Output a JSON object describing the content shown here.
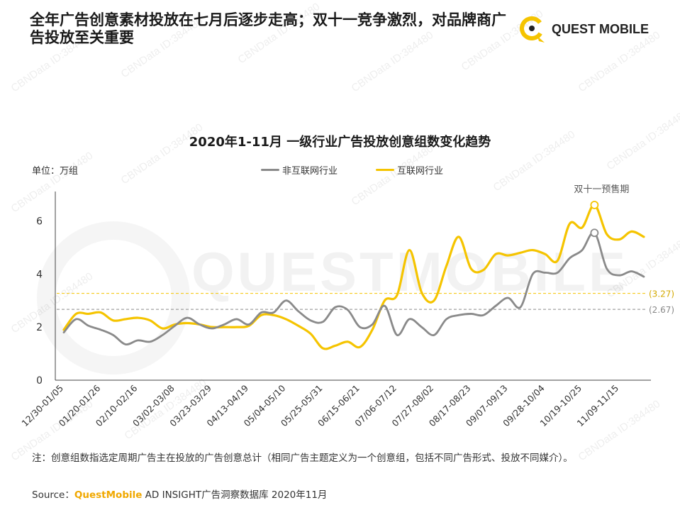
{
  "header": {
    "headline": "全年广告创意素材投放在七月后逐步走高；双十一竞争激烈，对品牌商广告投放至关重要",
    "logo_text": "QUEST MOBILE"
  },
  "watermark": {
    "text": "CBNData ID:384480",
    "bg_text": "QUESTMOBILE"
  },
  "unit_label": "单位：万组",
  "legend": {
    "series1": "非互联网行业",
    "series2": "互联网行业"
  },
  "annotations": {
    "peak_label": "双十一预售期",
    "avg1_label": "(2.67)",
    "avg2_label": "(3.27)"
  },
  "note": "注：创意组数指选定周期广告主在投放的广告创意总计（相同广告主题定义为一个创意组，包括不同广告形式、投放不同媒介）。",
  "source": {
    "prefix": "Source：",
    "brand": "QuestMobile",
    "suffix": " AD INSIGHT广告洞察数据库 2020年11月"
  },
  "colors": {
    "series1": "#8a8a8a",
    "series2": "#f5c400",
    "accent": "#f5c400"
  },
  "chart_data": {
    "type": "line",
    "title": "2020年1-11月 一级行业广告投放创意组数变化趋势",
    "ylabel": "单位：万组",
    "ylim": [
      0,
      7
    ],
    "yticks": [
      0,
      2,
      4,
      6
    ],
    "x_tick_labels": [
      "12/30-01/05",
      "01/20-01/26",
      "02/10-02/16",
      "03/02-03/08",
      "03/23-03/29",
      "04/13-04/19",
      "05/04-05/10",
      "05/25-05/31",
      "06/15-06/21",
      "07/06-07/12",
      "07/27-08/02",
      "08/17-08/23",
      "09/07-09/13",
      "09/28-10/04",
      "10/19-10/25",
      "11/09-11/15"
    ],
    "x_tick_positions": [
      0,
      3,
      6,
      9,
      12,
      15,
      18,
      21,
      24,
      27,
      30,
      33,
      36,
      39,
      42,
      45
    ],
    "series": [
      {
        "name": "非互联网行业",
        "values": [
          1.8,
          2.3,
          2.05,
          1.9,
          1.7,
          1.35,
          1.5,
          1.45,
          1.7,
          2.05,
          2.35,
          2.1,
          1.95,
          2.1,
          2.3,
          2.1,
          2.55,
          2.55,
          3.0,
          2.6,
          2.25,
          2.2,
          2.75,
          2.65,
          2.0,
          2.1,
          2.8,
          1.7,
          2.3,
          2.0,
          1.7,
          2.3,
          2.45,
          2.5,
          2.45,
          2.8,
          3.1,
          2.75,
          4.0,
          4.05,
          4.05,
          4.6,
          4.9,
          5.55,
          4.2,
          3.95,
          4.1,
          3.9
        ],
        "range": "1.3-5.6"
      },
      {
        "name": "互联网行业",
        "values": [
          1.9,
          2.5,
          2.5,
          2.55,
          2.25,
          2.3,
          2.35,
          2.25,
          1.95,
          2.1,
          2.15,
          2.1,
          2.0,
          2.0,
          2.0,
          2.05,
          2.45,
          2.45,
          2.3,
          2.05,
          1.75,
          1.2,
          1.3,
          1.45,
          1.25,
          1.9,
          3.0,
          3.2,
          4.9,
          3.3,
          3.0,
          4.3,
          5.4,
          4.2,
          4.15,
          4.75,
          4.7,
          4.8,
          4.9,
          4.75,
          4.5,
          5.9,
          5.75,
          6.6,
          5.5,
          5.3,
          5.6,
          5.4
        ],
        "range": "1.2-6.6"
      }
    ],
    "reference_lines": [
      {
        "series": "非互联网行业",
        "value": 2.67
      },
      {
        "series": "互联网行业",
        "value": 3.27
      }
    ],
    "grid": false,
    "legend_position": "top-center"
  }
}
